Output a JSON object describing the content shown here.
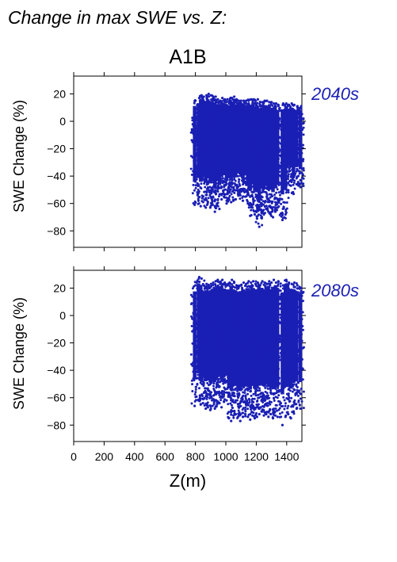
{
  "figure": {
    "title": "Change in max SWE vs. Z:",
    "scenario": "A1B"
  },
  "colors": {
    "points": "#1a1fb4"
  },
  "chart_data": [
    {
      "type": "scatter",
      "period_label": "2040s",
      "ylabel": "SWE Change (%)",
      "xlabel": "",
      "xlim": [
        0,
        1500
      ],
      "ylim": [
        -92,
        33
      ],
      "xticks": [
        0,
        200,
        400,
        600,
        800,
        1000,
        1200,
        1400
      ],
      "yticks": [
        20,
        0,
        -20,
        -40,
        -60,
        -80
      ],
      "ytick_labels": [
        "20",
        "0",
        "−20",
        "−40",
        "−60",
        "−80"
      ],
      "x_tick_labels_shown": false,
      "columns": [
        [
          795,
          -61,
          15
        ],
        [
          820,
          -58,
          17
        ],
        [
          835,
          -62,
          19
        ],
        [
          850,
          -55,
          18
        ],
        [
          868,
          -63,
          19
        ],
        [
          882,
          -59,
          20
        ],
        [
          898,
          -63,
          19
        ],
        [
          912,
          -61,
          18
        ],
        [
          928,
          -66,
          18
        ],
        [
          942,
          -60,
          16
        ],
        [
          958,
          -64,
          15
        ],
        [
          972,
          -57,
          17
        ],
        [
          988,
          -55,
          16
        ],
        [
          1005,
          -60,
          16
        ],
        [
          1020,
          -56,
          15
        ],
        [
          1035,
          -59,
          17
        ],
        [
          1050,
          -58,
          18
        ],
        [
          1065,
          -57,
          16
        ],
        [
          1080,
          -53,
          15
        ],
        [
          1095,
          -54,
          15
        ],
        [
          1112,
          -58,
          15
        ],
        [
          1128,
          -55,
          15
        ],
        [
          1145,
          -60,
          15
        ],
        [
          1160,
          -69,
          16
        ],
        [
          1175,
          -63,
          16
        ],
        [
          1190,
          -68,
          15
        ],
        [
          1205,
          -71,
          16
        ],
        [
          1220,
          -77,
          14
        ],
        [
          1235,
          -67,
          14
        ],
        [
          1250,
          -68,
          15
        ],
        [
          1265,
          -64,
          15
        ],
        [
          1280,
          -66,
          14
        ],
        [
          1295,
          -68,
          14
        ],
        [
          1310,
          -70,
          13
        ],
        [
          1325,
          -66,
          13
        ],
        [
          1340,
          -63,
          12
        ],
        [
          1372,
          -72,
          13
        ],
        [
          1392,
          -68,
          13
        ],
        [
          1410,
          -45,
          12
        ],
        [
          1428,
          -47,
          13
        ],
        [
          1445,
          -53,
          12
        ],
        [
          1465,
          -46,
          11
        ],
        [
          1490,
          -48,
          11
        ]
      ]
    },
    {
      "type": "scatter",
      "period_label": "2080s",
      "ylabel": "SWE Change (%)",
      "xlabel": "Z(m)",
      "xlim": [
        0,
        1500
      ],
      "ylim": [
        -92,
        33
      ],
      "xticks": [
        0,
        200,
        400,
        600,
        800,
        1000,
        1200,
        1400
      ],
      "xtick_labels": [
        "0",
        "200",
        "400",
        "600",
        "800",
        "1000",
        "1200",
        "1400"
      ],
      "yticks": [
        20,
        0,
        -20,
        -40,
        -60,
        -80
      ],
      "ytick_labels": [
        "20",
        "0",
        "−20",
        "−40",
        "−60",
        "−80"
      ],
      "x_tick_labels_shown": true,
      "columns": [
        [
          795,
          -66,
          22
        ],
        [
          820,
          -62,
          28
        ],
        [
          835,
          -65,
          27
        ],
        [
          850,
          -64,
          22
        ],
        [
          868,
          -68,
          23
        ],
        [
          882,
          -67,
          22
        ],
        [
          898,
          -69,
          23
        ],
        [
          912,
          -66,
          24
        ],
        [
          928,
          -68,
          25
        ],
        [
          942,
          -65,
          26
        ],
        [
          958,
          -64,
          23
        ],
        [
          972,
          -67,
          26
        ],
        [
          988,
          -63,
          24
        ],
        [
          1005,
          -62,
          22
        ],
        [
          1020,
          -75,
          24
        ],
        [
          1035,
          -77,
          26
        ],
        [
          1050,
          -73,
          24
        ],
        [
          1065,
          -72,
          22
        ],
        [
          1080,
          -74,
          21
        ],
        [
          1095,
          -77,
          22
        ],
        [
          1112,
          -74,
          24
        ],
        [
          1128,
          -72,
          23
        ],
        [
          1145,
          -74,
          25
        ],
        [
          1160,
          -76,
          24
        ],
        [
          1175,
          -73,
          25
        ],
        [
          1190,
          -75,
          23
        ],
        [
          1205,
          -74,
          24
        ],
        [
          1220,
          -72,
          22
        ],
        [
          1235,
          -70,
          25
        ],
        [
          1250,
          -73,
          24
        ],
        [
          1265,
          -71,
          23
        ],
        [
          1280,
          -74,
          25
        ],
        [
          1295,
          -72,
          24
        ],
        [
          1310,
          -75,
          26
        ],
        [
          1325,
          -73,
          24
        ],
        [
          1340,
          -74,
          25
        ],
        [
          1372,
          -80,
          22
        ],
        [
          1392,
          -74,
          26
        ],
        [
          1410,
          -72,
          24
        ],
        [
          1428,
          -75,
          23
        ],
        [
          1445,
          -70,
          24
        ],
        [
          1465,
          -68,
          22
        ],
        [
          1490,
          -68,
          20
        ]
      ]
    }
  ]
}
